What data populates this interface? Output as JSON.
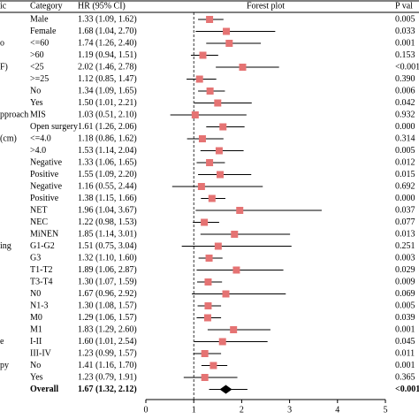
{
  "chart_data": {
    "type": "forest",
    "headers": [
      "ic",
      "Category",
      "HR (95% CI)",
      "Forest plot",
      "P val"
    ],
    "groups": [
      "o",
      "F)",
      "pproach",
      "(cm)",
      "ing",
      "e",
      "py"
    ],
    "group_rows": [
      2,
      4,
      8,
      10,
      19,
      27,
      29
    ],
    "categories": [
      "Male",
      "Female",
      "<=60",
      ">60",
      "<25",
      ">=25",
      "No",
      "Yes",
      "MIS",
      "Open surgery",
      "<=4.0",
      ">4.0",
      "Negative",
      "Positive",
      "Negative",
      "Positive",
      "NET",
      "NEC",
      "MiNEN",
      "G1-G2",
      "G3",
      "T1-T2",
      "T3-T4",
      "N0",
      "N1-3",
      "M0",
      "M1",
      "I-II",
      "III-IV",
      "No",
      "Yes",
      "Overall"
    ],
    "values": [
      1.33,
      1.68,
      1.74,
      1.19,
      2.02,
      1.12,
      1.34,
      1.5,
      1.03,
      1.61,
      1.18,
      1.53,
      1.33,
      1.55,
      1.16,
      1.38,
      1.96,
      1.22,
      1.85,
      1.51,
      1.32,
      1.89,
      1.3,
      1.67,
      1.3,
      1.29,
      1.83,
      1.6,
      1.23,
      1.41,
      1.23,
      1.67
    ],
    "ci_low": [
      1.09,
      1.04,
      1.26,
      0.94,
      1.46,
      0.85,
      1.09,
      1.01,
      0.51,
      1.26,
      0.86,
      1.14,
      1.06,
      1.09,
      0.55,
      1.15,
      1.04,
      0.98,
      1.14,
      0.75,
      1.1,
      1.06,
      1.07,
      0.96,
      1.08,
      1.06,
      1.29,
      1.01,
      0.99,
      1.16,
      0.79,
      1.32
    ],
    "ci_high": [
      1.62,
      2.7,
      2.4,
      1.51,
      2.78,
      1.47,
      1.65,
      2.21,
      2.1,
      2.06,
      1.62,
      2.04,
      1.65,
      2.2,
      2.44,
      1.66,
      3.67,
      1.53,
      3.01,
      3.04,
      1.6,
      2.87,
      1.59,
      2.92,
      1.57,
      1.57,
      2.6,
      2.54,
      1.57,
      1.7,
      1.91,
      2.12
    ],
    "value_labels": [
      "1.33 (1.09, 1.62)",
      "1.68 (1.04, 2.70)",
      "1.74 (1.26, 2.40)",
      "1.19 (0.94, 1.51)",
      "2.02 (1.46, 2.78)",
      "1.12 (0.85, 1.47)",
      "1.34 (1.09, 1.65)",
      "1.50 (1.01, 2.21)",
      "1.03 (0.51, 2.10)",
      "1.61 (1.26, 2.06)",
      "1.18 (0.86, 1.62)",
      "1.53 (1.14, 2.04)",
      "1.33 (1.06, 1.65)",
      "1.55 (1.09, 2.20)",
      "1.16 (0.55, 2.44)",
      "1.38 (1.15, 1.66)",
      "1.96 (1.04, 3.67)",
      "1.22 (0.98, 1.53)",
      "1.85 (1.14, 3.01)",
      "1.51 (0.75, 3.04)",
      "1.32 (1.10, 1.60)",
      "1.89 (1.06, 2.87)",
      "1.30 (1.07, 1.59)",
      "1.67 (0.96, 2.92)",
      "1.30 (1.08, 1.57)",
      "1.29 (1.06, 1.57)",
      "1.83 (1.29, 2.60)",
      "1.60 (1.01, 2.54)",
      "1.23 (0.99, 1.57)",
      "1.41 (1.16, 1.70)",
      "1.23 (0.79, 1.91)",
      "1.67 (1.32, 2.12)"
    ],
    "p_values": [
      "0.005",
      "0.033",
      "0.001",
      "0.153",
      "<0.001",
      "0.390",
      "0.006",
      "0.042",
      "0.932",
      "0.000",
      "0.314",
      "0.005",
      "0.012",
      "0.015",
      "0.692",
      "0.000",
      "0.037",
      "0.077",
      "0.013",
      "0.251",
      "0.003",
      "0.029",
      "0.009",
      "0.069",
      "0.005",
      "0.039",
      "0.001",
      "0.045",
      "0.011",
      "0.001",
      "0.365",
      "<0.001"
    ],
    "reference": 1,
    "xlim": [
      0,
      5
    ],
    "xticks": [
      0,
      1,
      2,
      3,
      4,
      5
    ],
    "color": "#e57373",
    "summary_color": "#000000"
  }
}
